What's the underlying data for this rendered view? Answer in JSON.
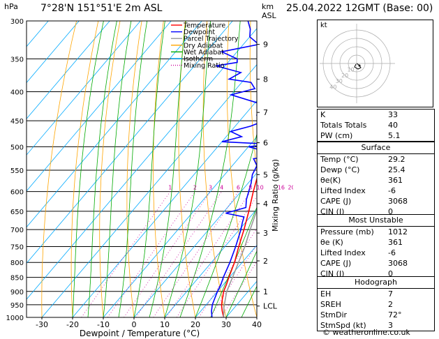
{
  "header": {
    "location": "7°28'N  151°51'E  2m  ASL",
    "datetime": "25.04.2022  12GMT  (Base: 00)",
    "hpa_label": "hPa",
    "km_label": "km",
    "asl_label": "ASL"
  },
  "legend": [
    "Temperature",
    "Dewpoint",
    "Parcel Trajectory",
    "Dry Adiabat",
    "Wet Adiabat",
    "Isotherm",
    "Mixing Ratio"
  ],
  "colors": {
    "temperature": "#ff0000",
    "dewpoint": "#0000ff",
    "parcel": "#999999",
    "dry_adiabat": "#ffa500",
    "wet_adiabat": "#00aa00",
    "isotherm": "#00aaff",
    "mixing_ratio": "#cc0099"
  },
  "chart_data": {
    "type": "line",
    "xlabel": "Dewpoint / Temperature (°C)",
    "ylabel": "Mixing Ratio (g/kg)",
    "xlim": [
      -35,
      40
    ],
    "ylim_hpa": [
      1000,
      300
    ],
    "x_ticks": [
      "-30",
      "-20",
      "-10",
      "0",
      "10",
      "20",
      "30",
      "40"
    ],
    "pressure_ticks": [
      "300",
      "350",
      "400",
      "450",
      "500",
      "550",
      "600",
      "650",
      "700",
      "750",
      "800",
      "850",
      "900",
      "950",
      "1000"
    ],
    "km_ticks": [
      {
        "p": 330,
        "label": "9"
      },
      {
        "p": 380,
        "label": "8"
      },
      {
        "p": 435,
        "label": "7"
      },
      {
        "p": 492,
        "label": "6"
      },
      {
        "p": 560,
        "label": "5"
      },
      {
        "p": 630,
        "label": "4"
      },
      {
        "p": 710,
        "label": "3"
      },
      {
        "p": 795,
        "label": "2"
      },
      {
        "p": 900,
        "label": "1"
      },
      {
        "p": 955,
        "label": "LCL"
      }
    ],
    "mixing_ratio_labels": [
      {
        "v": 1,
        "label": "1"
      },
      {
        "v": 2,
        "label": "2"
      },
      {
        "v": 3,
        "label": "3"
      },
      {
        "v": 4,
        "label": "4"
      },
      {
        "v": 6,
        "label": "6"
      },
      {
        "v": 8,
        "label": "8"
      },
      {
        "v": 10,
        "label": "10"
      },
      {
        "v": 16,
        "label": "16"
      },
      {
        "v": 20,
        "label": "20"
      },
      {
        "v": 25,
        "label": "25"
      }
    ],
    "series": [
      {
        "name": "Temperature",
        "points": [
          [
            1000,
            29.2
          ],
          [
            975,
            27
          ],
          [
            950,
            25
          ],
          [
            925,
            23.5
          ],
          [
            900,
            22
          ],
          [
            875,
            21
          ],
          [
            850,
            19.8
          ],
          [
            800,
            17.5
          ],
          [
            750,
            14.5
          ],
          [
            700,
            11.5
          ],
          [
            650,
            8
          ],
          [
            600,
            4
          ],
          [
            550,
            0
          ],
          [
            500,
            -4.5
          ],
          [
            450,
            -10
          ],
          [
            400,
            -16.5
          ],
          [
            370,
            -21
          ],
          [
            350,
            -24
          ]
        ]
      },
      {
        "name": "Dewpoint",
        "points": [
          [
            1000,
            25.4
          ],
          [
            975,
            23.5
          ],
          [
            950,
            22
          ],
          [
            925,
            21
          ],
          [
            900,
            20
          ],
          [
            875,
            19.2
          ],
          [
            850,
            18
          ],
          [
            800,
            16
          ],
          [
            750,
            13.5
          ],
          [
            700,
            10.5
          ],
          [
            680,
            9
          ],
          [
            665,
            8
          ],
          [
            655,
            1
          ],
          [
            640,
            6
          ],
          [
            620,
            4
          ],
          [
            580,
            1
          ],
          [
            560,
            -1
          ],
          [
            540,
            -2
          ],
          [
            525,
            -5
          ],
          [
            520,
            0
          ],
          [
            510,
            -3
          ],
          [
            500,
            -10
          ],
          [
            495,
            -3
          ],
          [
            490,
            -20
          ],
          [
            480,
            -15
          ],
          [
            470,
            -20
          ],
          [
            460,
            -15
          ],
          [
            450,
            -12
          ],
          [
            440,
            -16
          ],
          [
            420,
            -18
          ],
          [
            405,
            -30
          ],
          [
            395,
            -24
          ],
          [
            385,
            -27
          ],
          [
            380,
            -35
          ],
          [
            370,
            -33
          ],
          [
            360,
            -43
          ],
          [
            355,
            -37
          ],
          [
            350,
            -38
          ],
          [
            340,
            -45
          ],
          [
            330,
            -35
          ],
          [
            320,
            -40
          ],
          [
            310,
            -42
          ],
          [
            300,
            -45
          ]
        ]
      },
      {
        "name": "Parcel Trajectory",
        "points": [
          [
            1000,
            29.2
          ],
          [
            960,
            26.5
          ],
          [
            900,
            23
          ],
          [
            850,
            21
          ],
          [
            800,
            18.8
          ],
          [
            750,
            16.5
          ],
          [
            700,
            13.5
          ],
          [
            650,
            10.5
          ],
          [
            600,
            7
          ],
          [
            550,
            3
          ],
          [
            500,
            -1.5
          ],
          [
            450,
            -7
          ],
          [
            400,
            -13
          ],
          [
            360,
            -19
          ]
        ]
      }
    ]
  },
  "indices": [
    {
      "label": "K",
      "value": "33"
    },
    {
      "label": "Totals Totals",
      "value": "40"
    },
    {
      "label": "PW (cm)",
      "value": "5.1"
    }
  ],
  "surface": {
    "title": "Surface",
    "rows": [
      {
        "label": "Temp (°C)",
        "value": "29.2"
      },
      {
        "label": "Dewp (°C)",
        "value": "25.4"
      },
      {
        "label": "θe(K)",
        "value": "361"
      },
      {
        "label": "Lifted Index",
        "value": "-6"
      },
      {
        "label": "CAPE (J)",
        "value": "3068"
      },
      {
        "label": "CIN (J)",
        "value": "0"
      }
    ]
  },
  "most_unstable": {
    "title": "Most Unstable",
    "rows": [
      {
        "label": "Pressure (mb)",
        "value": "1012"
      },
      {
        "label": "θe (K)",
        "value": "361"
      },
      {
        "label": "Lifted Index",
        "value": "-6"
      },
      {
        "label": "CAPE (J)",
        "value": "3068"
      },
      {
        "label": "CIN (J)",
        "value": "0"
      }
    ]
  },
  "hodograph": {
    "title": "Hodograph",
    "rows": [
      {
        "label": "EH",
        "value": "7"
      },
      {
        "label": "SREH",
        "value": "2"
      },
      {
        "label": "StmDir",
        "value": "72°"
      },
      {
        "label": "StmSpd (kt)",
        "value": "3"
      }
    ],
    "unit": "kt",
    "ring_labels": [
      "10",
      "20",
      "30",
      "40"
    ]
  },
  "footer": {
    "copyright": "© weatheronline.co.uk"
  }
}
